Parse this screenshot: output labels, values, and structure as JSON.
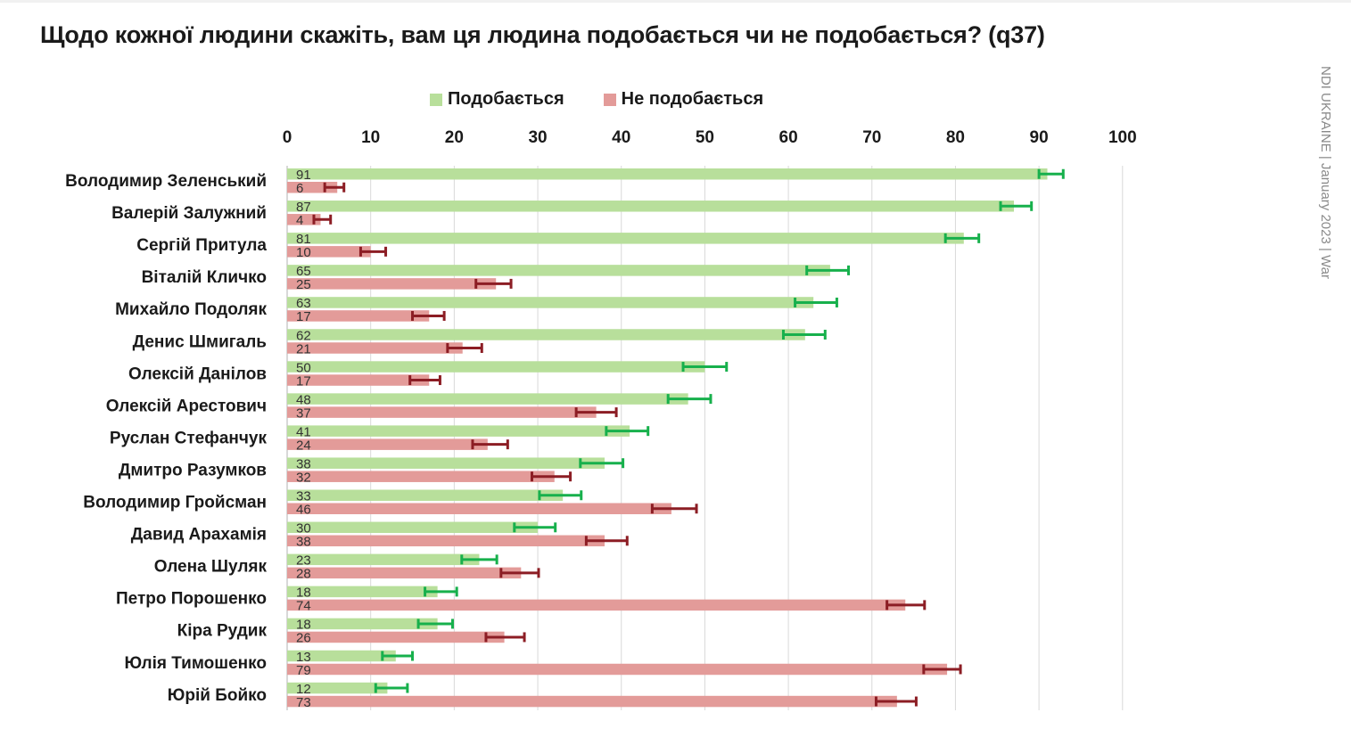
{
  "title": "Щодо кожної людини скажіть, вам ця людина подобається чи не подобається? (q37)",
  "source": "NDI UKRAINE | January 2023 | War",
  "colors": {
    "like_bar": "#b8df9b",
    "dislike_bar": "#e39b99",
    "like_error": "#17b04c",
    "dislike_error": "#8c1d24",
    "grid": "#d9d9d9"
  },
  "chart_data": {
    "type": "bar",
    "orientation": "horizontal",
    "title": "Щодо кожної людини скажіть, вам ця людина подобається чи не подобається? (q37)",
    "xlim": [
      0,
      100
    ],
    "x_ticks": [
      "0",
      "10",
      "20",
      "30",
      "40",
      "50",
      "60",
      "70",
      "80",
      "90",
      "100"
    ],
    "x_axis_position": "top",
    "grid": true,
    "legend_position": "top",
    "error_bars": true,
    "categories": [
      "Володимир Зеленський",
      "Валерій Залужний",
      "Сергій Притула",
      "Віталій Кличко",
      "Михайло Подоляк",
      "Денис Шмигаль",
      "Олексій Данілов",
      "Олексій Арестович",
      "Руслан Стефанчук",
      "Дмитро Разумков",
      "Володимир Гройсман",
      "Давид Арахамія",
      "Олена Шуляк",
      "Петро Порошенко",
      "Кіра Рудик",
      "Юлія Тимошенко",
      "Юрій Бойко"
    ],
    "series": [
      {
        "name": "Подобається",
        "values": [
          91,
          87,
          81,
          65,
          63,
          62,
          50,
          48,
          41,
          38,
          33,
          30,
          23,
          18,
          18,
          13,
          12
        ],
        "error_low": [
          90,
          85.4,
          78.8,
          62.2,
          60.8,
          59.4,
          47.4,
          45.6,
          38.2,
          35.1,
          30.2,
          27.2,
          20.9,
          16.5,
          15.7,
          11.4,
          10.6
        ],
        "error_high": [
          92.9,
          89.1,
          82.8,
          67.2,
          65.8,
          64.4,
          52.6,
          50.7,
          43.2,
          40.2,
          35.2,
          32.1,
          25.1,
          20.3,
          19.8,
          15.0,
          14.4
        ]
      },
      {
        "name": "Не подобається",
        "values": [
          6,
          4,
          10,
          25,
          17,
          21,
          17,
          37,
          24,
          32,
          46,
          38,
          28,
          74,
          26,
          79,
          73
        ],
        "error_low": [
          4.5,
          3.2,
          8.8,
          22.6,
          15.0,
          19.2,
          14.7,
          34.6,
          22.2,
          29.3,
          43.7,
          35.8,
          25.6,
          71.8,
          23.8,
          76.2,
          70.5
        ],
        "error_high": [
          6.8,
          5.2,
          11.8,
          26.8,
          18.8,
          23.3,
          18.3,
          39.4,
          26.4,
          33.9,
          49.0,
          40.7,
          30.1,
          76.3,
          28.4,
          80.6,
          75.3
        ]
      }
    ]
  }
}
